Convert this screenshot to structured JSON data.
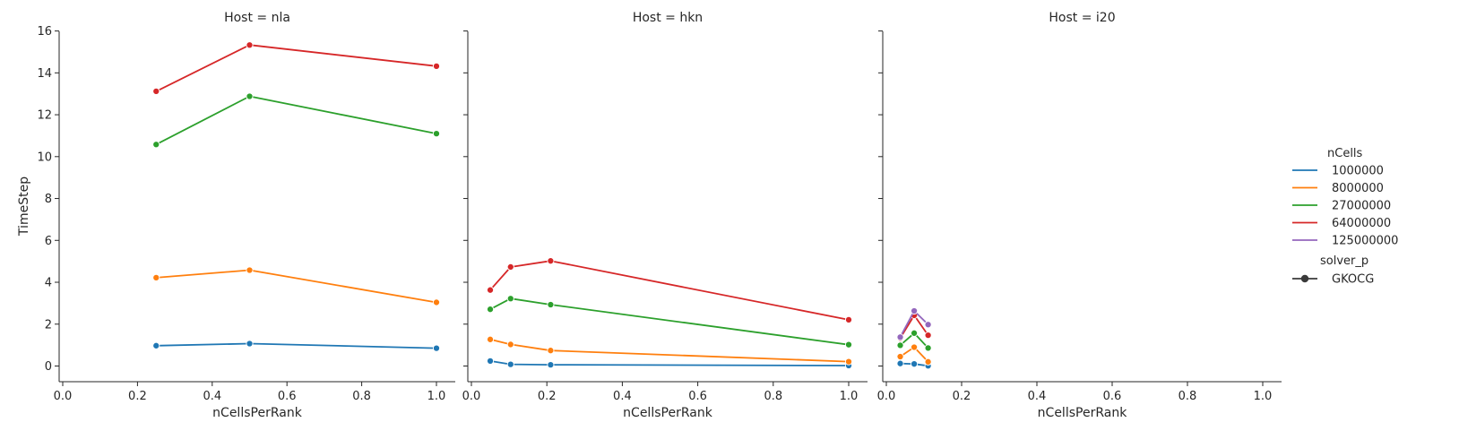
{
  "chart_data": {
    "type": "line",
    "facet_by": "Host",
    "xlabel": "nCellsPerRank",
    "ylabel": "TimeStep",
    "xlim": [
      0,
      1.0
    ],
    "ylim": [
      -0.8,
      16.2
    ],
    "x_ticks": [
      0.0,
      0.2,
      0.4,
      0.6,
      0.8,
      1.0
    ],
    "x_tick_labels": [
      "0.0",
      "0.2",
      "0.4",
      "0.6",
      "0.8",
      "1.0"
    ],
    "y_ticks": [
      0,
      2,
      4,
      6,
      8,
      10,
      12,
      14,
      16
    ],
    "y_tick_labels": [
      "0",
      "2",
      "4",
      "6",
      "8",
      "10",
      "12",
      "14",
      "16"
    ],
    "legend": {
      "placement": "right",
      "hue_title": "nCells",
      "hue_entries": [
        {
          "label": "1000000",
          "color": "#1f77b4"
        },
        {
          "label": "8000000",
          "color": "#ff7f0e"
        },
        {
          "label": "27000000",
          "color": "#2ca02c"
        },
        {
          "label": "64000000",
          "color": "#d62728"
        },
        {
          "label": "125000000",
          "color": "#9467bd"
        }
      ],
      "style_title": "solver_p",
      "style_entries": [
        {
          "label": "GKOCG"
        }
      ]
    },
    "panels": [
      {
        "title": "Host = nla",
        "series": [
          {
            "nCells": "1000000",
            "color": "#1f77b4",
            "x": [
              0.25,
              0.5,
              1.0
            ],
            "y": [
              0.97,
              1.07,
              0.85
            ]
          },
          {
            "nCells": "8000000",
            "color": "#ff7f0e",
            "x": [
              0.25,
              0.5,
              1.0
            ],
            "y": [
              4.22,
              4.58,
              3.04
            ]
          },
          {
            "nCells": "27000000",
            "color": "#2ca02c",
            "x": [
              0.25,
              0.5,
              1.0
            ],
            "y": [
              10.58,
              12.88,
              11.1
            ]
          },
          {
            "nCells": "64000000",
            "color": "#d62728",
            "x": [
              0.25,
              0.5,
              1.0
            ],
            "y": [
              13.12,
              15.33,
              14.32
            ]
          }
        ]
      },
      {
        "title": "Host = hkn",
        "series": [
          {
            "nCells": "1000000",
            "color": "#1f77b4",
            "x": [
              0.05,
              0.104,
              0.21,
              1.0
            ],
            "y": [
              0.24,
              0.08,
              0.06,
              0.02
            ]
          },
          {
            "nCells": "8000000",
            "color": "#ff7f0e",
            "x": [
              0.05,
              0.104,
              0.21,
              1.0
            ],
            "y": [
              1.27,
              1.03,
              0.74,
              0.21
            ]
          },
          {
            "nCells": "27000000",
            "color": "#2ca02c",
            "x": [
              0.05,
              0.104,
              0.21,
              1.0
            ],
            "y": [
              2.71,
              3.22,
              2.93,
              1.02
            ]
          },
          {
            "nCells": "64000000",
            "color": "#d62728",
            "x": [
              0.05,
              0.104,
              0.21,
              1.0
            ],
            "y": [
              3.63,
              4.73,
              5.02,
              2.21
            ]
          }
        ]
      },
      {
        "title": "Host = i20",
        "series": [
          {
            "nCells": "1000000",
            "color": "#1f77b4",
            "x": [
              0.037,
              0.074,
              0.111
            ],
            "y": [
              0.12,
              0.1,
              0.01
            ]
          },
          {
            "nCells": "8000000",
            "color": "#ff7f0e",
            "x": [
              0.037,
              0.074,
              0.111
            ],
            "y": [
              0.45,
              0.9,
              0.2
            ]
          },
          {
            "nCells": "27000000",
            "color": "#2ca02c",
            "x": [
              0.037,
              0.074,
              0.111
            ],
            "y": [
              0.99,
              1.57,
              0.86
            ]
          },
          {
            "nCells": "64000000",
            "color": "#d62728",
            "x": [
              0.037,
              0.074,
              0.111
            ],
            "y": [
              1.33,
              2.42,
              1.47
            ]
          },
          {
            "nCells": "125000000",
            "color": "#9467bd",
            "x": [
              0.037,
              0.074,
              0.111
            ],
            "y": [
              1.38,
              2.63,
              1.98
            ]
          }
        ]
      }
    ]
  }
}
